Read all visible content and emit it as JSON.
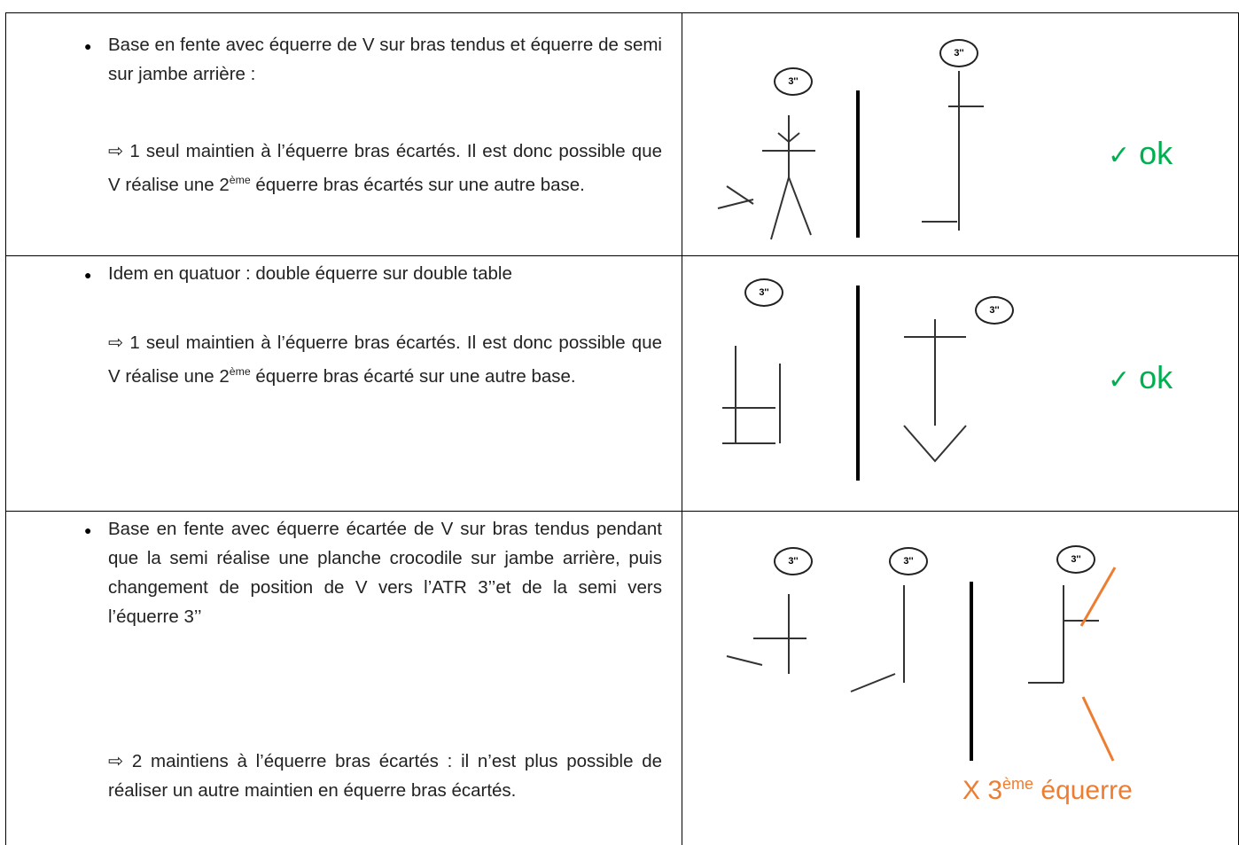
{
  "rows": [
    {
      "bullet": "Base en fente avec équerre de V sur bras tendus et équerre de semi sur jambe arrière :",
      "note": [
        "⇨  1 seul maintien à l’équerre bras écartés. Il est donc possible que V réalise une 2",
        "ème",
        " équerre bras écartés sur une autre base."
      ],
      "badges": [
        "3''",
        "3''"
      ],
      "verdict": [
        "✓",
        "ok"
      ]
    },
    {
      "bullet": "Idem en quatuor : double équerre sur double table",
      "note": [
        "⇨  1 seul maintien à l’équerre bras écartés. Il est donc possible que V réalise une 2",
        "ème",
        " équerre bras écarté sur une autre base."
      ],
      "badges": [
        "3''",
        "3''"
      ],
      "verdict": [
        "✓",
        "ok"
      ]
    },
    {
      "bullet": "Base en fente avec équerre écartée de V sur bras tendus pendant que la semi réalise une planche crocodile sur jambe arrière, puis changement de position de V vers l’ATR 3’’et de la semi vers l’équerre 3’’",
      "note": [
        "⇨  2 maintiens à l’équerre bras écartés : il n’est plus possible de réaliser un autre maintien en équerre bras écartés."
      ],
      "badges": [
        "3''",
        "3''",
        "3''"
      ],
      "verdict": [
        "X 3",
        "ème",
        " équerre"
      ]
    }
  ]
}
